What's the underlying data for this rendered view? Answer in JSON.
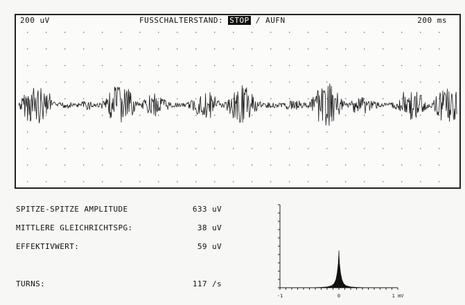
{
  "scope": {
    "amplitude_scale": "200 uV",
    "time_scale": "200 ms",
    "footswitch_label": "FUSSCHALTERSTAND:",
    "mode_active": "STOP",
    "mode_separator": "/",
    "mode_inactive": "AUFN",
    "grid": true
  },
  "measurements": [
    {
      "label": "SPITZE-SPITZE AMPLITUDE",
      "value": "633 uV"
    },
    {
      "label": "MITTLERE GLEICHRICHTSPG:",
      "value": "38 uV"
    },
    {
      "label": "EFFEKTIVWERT:",
      "value": "59 uV"
    },
    {
      "label": "TURNS:",
      "value": "117 /s"
    }
  ],
  "chart_data": {
    "type": "area",
    "x": [
      -1,
      -0.5,
      -0.3,
      -0.2,
      -0.12,
      -0.08,
      -0.05,
      -0.03,
      -0.01,
      0,
      0.01,
      0.03,
      0.05,
      0.08,
      0.12,
      0.2,
      0.3,
      0.5,
      1
    ],
    "values": [
      0,
      0,
      0.1,
      0.2,
      0.5,
      1,
      2,
      3.5,
      6,
      9,
      6,
      3.5,
      2,
      1,
      0.5,
      0.2,
      0.1,
      0,
      0
    ],
    "xlim": [
      -1,
      1
    ],
    "xticks": [
      "-1",
      "0",
      "1 mV"
    ],
    "ylim": [
      0,
      20
    ]
  }
}
